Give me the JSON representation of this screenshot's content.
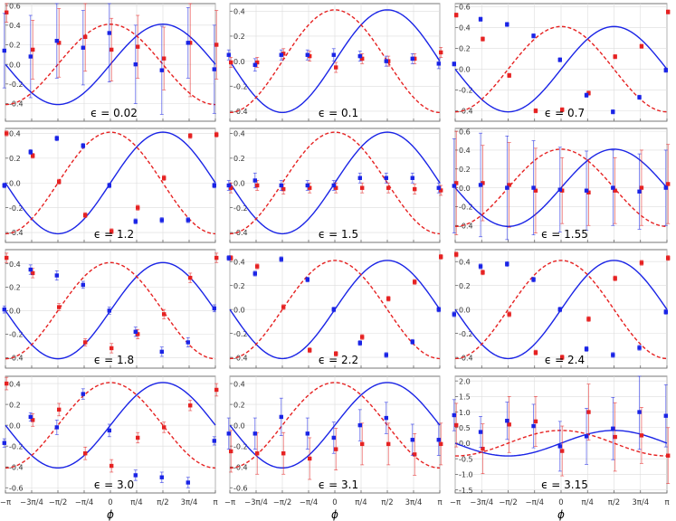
{
  "chart_data": {
    "type": "scatter",
    "xlabel": "ϕ",
    "x_ticks": [
      "−π",
      "−3π/4",
      "−π/2",
      "−π/4",
      "0",
      "π/4",
      "π/2",
      "3π/4",
      "π"
    ],
    "x_values": [
      -3.1416,
      -2.3562,
      -1.5708,
      -0.7854,
      0,
      0.7854,
      1.5708,
      2.3562,
      3.1416
    ],
    "panels": [
      {
        "label": "ϵ = 0.02",
        "ylim": [
          -0.58,
          0.62
        ],
        "yticks": [
          "-0.4",
          "-0.2",
          "0.0",
          "0.2",
          "0.4",
          "0.6"
        ],
        "blue": [
          0.14,
          0.08,
          0.24,
          0.17,
          0.32,
          0.0,
          -0.06,
          0.22,
          -0.05
        ],
        "blue_err": [
          0.38,
          0.42,
          0.38,
          0.38,
          0.5,
          0.4,
          0.45,
          0.36,
          0.45
        ],
        "red": [
          0.53,
          0.15,
          0.22,
          0.28,
          0.15,
          0.18,
          0.06,
          0.22,
          0.2
        ],
        "red_err": [
          0.1,
          0.3,
          0.35,
          0.35,
          0.32,
          0.32,
          0.32,
          0.55,
          0.35
        ]
      },
      {
        "label": "ϵ = 0.1",
        "ylim": [
          -0.48,
          0.46
        ],
        "yticks": [
          "-0.4",
          "-0.2",
          "0.0",
          "0.2",
          "0.4"
        ],
        "blue": [
          0.05,
          -0.03,
          0.05,
          0.05,
          0.05,
          0.04,
          0.0,
          0.02,
          -0.02
        ],
        "blue_err": [
          0.04,
          0.05,
          0.04,
          0.04,
          0.05,
          0.04,
          0.04,
          0.04,
          0.04
        ],
        "red": [
          -0.01,
          -0.01,
          0.06,
          0.04,
          -0.05,
          0.02,
          0.0,
          0.02,
          0.07
        ],
        "red_err": [
          0.04,
          0.04,
          0.04,
          0.04,
          0.04,
          0.04,
          0.04,
          0.04,
          0.04
        ]
      },
      {
        "label": "ϵ = 0.7",
        "ylim": [
          -0.5,
          0.63
        ],
        "yticks": [
          "-0.4",
          "-0.2",
          "0.0",
          "0.2",
          "0.4",
          "0.6"
        ],
        "blue": [
          0.05,
          0.48,
          0.43,
          0.32,
          0.09,
          -0.25,
          -0.41,
          -0.27,
          -0.01
        ],
        "blue_err": [
          0.02,
          0.02,
          0.02,
          0.02,
          0.02,
          0.02,
          0.02,
          0.02,
          0.02
        ],
        "red": [
          0.52,
          0.29,
          -0.06,
          -0.4,
          -0.39,
          -0.23,
          0.12,
          0.22,
          0.55
        ],
        "red_err": [
          0.02,
          0.02,
          0.02,
          0.02,
          0.02,
          0.02,
          0.02,
          0.02,
          0.02
        ]
      },
      {
        "label": "ϵ = 1.2",
        "ylim": [
          -0.48,
          0.44
        ],
        "yticks": [
          "-0.4",
          "-0.2",
          "0.0",
          "0.2",
          "0.4"
        ],
        "blue": [
          -0.02,
          0.25,
          0.36,
          0.3,
          -0.02,
          -0.31,
          -0.3,
          -0.3,
          -0.02
        ],
        "blue_err": [
          0.02,
          0.02,
          0.02,
          0.02,
          0.02,
          0.02,
          0.02,
          0.02,
          0.02
        ],
        "red": [
          0.4,
          0.22,
          0.01,
          -0.26,
          -0.39,
          -0.2,
          0.04,
          0.38,
          0.39
        ],
        "red_err": [
          0.02,
          0.02,
          0.02,
          0.02,
          0.02,
          0.02,
          0.02,
          0.02,
          0.02
        ]
      },
      {
        "label": "ϵ = 1.5",
        "ylim": [
          -0.48,
          0.44
        ],
        "yticks": [
          "-0.4",
          "-0.2",
          "0.0",
          "0.2",
          "0.4"
        ],
        "blue": [
          -0.02,
          0.02,
          -0.02,
          -0.02,
          -0.02,
          0.04,
          0.04,
          0.04,
          -0.04
        ],
        "blue_err": [
          0.04,
          0.06,
          0.04,
          0.04,
          0.04,
          0.04,
          0.04,
          0.04,
          0.04
        ],
        "red": [
          -0.04,
          -0.02,
          -0.05,
          -0.04,
          -0.04,
          -0.04,
          -0.04,
          -0.05,
          -0.06
        ],
        "red_err": [
          0.04,
          0.04,
          0.04,
          0.04,
          0.04,
          0.04,
          0.04,
          0.04,
          0.04
        ]
      },
      {
        "label": "ϵ = 1.55",
        "ylim": [
          -0.58,
          0.63
        ],
        "yticks": [
          "-0.4",
          "-0.2",
          "0.0",
          "0.2",
          "0.4",
          "0.6"
        ],
        "blue": [
          0.02,
          0.03,
          0.0,
          0.0,
          -0.02,
          -0.03,
          0.0,
          -0.04,
          0.0
        ],
        "blue_err": [
          0.5,
          0.55,
          0.55,
          0.5,
          0.45,
          0.42,
          0.4,
          0.4,
          0.4
        ],
        "red": [
          0.05,
          0.05,
          0.03,
          -0.03,
          -0.03,
          -0.05,
          -0.03,
          0.0,
          0.04
        ],
        "red_err": [
          0.55,
          0.4,
          0.45,
          0.45,
          0.35,
          0.35,
          0.35,
          0.4,
          0.42
        ]
      },
      {
        "label": "ϵ = 1.8",
        "ylim": [
          -0.49,
          0.52
        ],
        "yticks": [
          "-0.4",
          "-0.2",
          "0.0",
          "0.2",
          "0.4"
        ],
        "blue": [
          0.01,
          0.35,
          0.3,
          0.22,
          0.0,
          -0.18,
          -0.35,
          -0.27,
          0.02
        ],
        "blue_err": [
          0.03,
          0.04,
          0.04,
          0.03,
          0.03,
          0.04,
          0.04,
          0.04,
          0.03
        ],
        "red": [
          0.45,
          0.32,
          0.03,
          -0.27,
          -0.32,
          -0.2,
          -0.03,
          0.28,
          0.45
        ],
        "red_err": [
          0.04,
          0.04,
          0.03,
          0.03,
          0.04,
          0.04,
          0.04,
          0.04,
          0.04
        ]
      },
      {
        "label": "ϵ = 2.2",
        "ylim": [
          -0.49,
          0.5
        ],
        "yticks": [
          "-0.4",
          "-0.2",
          "0.0",
          "0.2",
          "0.4"
        ],
        "blue": [
          0.43,
          0.3,
          0.42,
          0.25,
          0.0,
          -0.28,
          -0.38,
          -0.27,
          0.0
        ],
        "blue_err": [
          0.02,
          0.02,
          0.02,
          0.02,
          0.02,
          0.02,
          0.02,
          0.02,
          0.02
        ],
        "red": [
          0.43,
          0.36,
          0.02,
          -0.34,
          -0.37,
          -0.23,
          0.09,
          0.23,
          0.44
        ],
        "red_err": [
          0.02,
          0.02,
          0.02,
          0.02,
          0.02,
          0.02,
          0.02,
          0.02,
          0.02
        ]
      },
      {
        "label": "ϵ = 2.4",
        "ylim": [
          -0.49,
          0.5
        ],
        "yticks": [
          "-0.4",
          "-0.2",
          "0.0",
          "0.2",
          "0.4"
        ],
        "blue": [
          -0.04,
          0.36,
          0.38,
          0.25,
          0.0,
          -0.33,
          -0.38,
          -0.32,
          -0.02
        ],
        "blue_err": [
          0.02,
          0.02,
          0.02,
          0.02,
          0.02,
          0.02,
          0.02,
          0.02,
          0.02
        ],
        "red": [
          0.46,
          0.31,
          -0.04,
          -0.36,
          -0.4,
          -0.08,
          0.26,
          0.39,
          0.43
        ],
        "red_err": [
          0.02,
          0.02,
          0.02,
          0.02,
          0.02,
          0.02,
          0.02,
          0.02,
          0.02
        ]
      },
      {
        "label": "ϵ = 3.0",
        "ylim": [
          -0.65,
          0.47
        ],
        "yticks": [
          "-0.6",
          "-0.4",
          "-0.2",
          "0.0",
          "0.2",
          "0.4"
        ],
        "blue": [
          -0.17,
          0.08,
          -0.02,
          0.3,
          -0.05,
          -0.48,
          -0.5,
          -0.55,
          -0.15
        ],
        "blue_err": [
          0.04,
          0.04,
          0.07,
          0.05,
          0.06,
          0.05,
          0.05,
          0.05,
          0.04
        ],
        "red": [
          0.4,
          0.05,
          0.15,
          -0.27,
          -0.39,
          -0.12,
          -0.02,
          0.19,
          0.34
        ],
        "red_err": [
          0.06,
          0.06,
          0.06,
          0.06,
          0.06,
          0.05,
          0.05,
          0.05,
          0.06
        ]
      },
      {
        "label": "ϵ = 3.1",
        "ylim": [
          -0.65,
          0.47
        ],
        "yticks": [
          "-0.6",
          "-0.4",
          "-0.2",
          "0.0",
          "0.2",
          "0.4"
        ],
        "blue": [
          -0.08,
          -0.08,
          0.08,
          -0.08,
          -0.12,
          0.0,
          0.07,
          -0.14,
          -0.14
        ],
        "blue_err": [
          0.15,
          0.15,
          0.18,
          0.15,
          0.15,
          0.15,
          0.15,
          0.15,
          0.15
        ],
        "red": [
          -0.25,
          -0.27,
          -0.27,
          -0.32,
          -0.23,
          -0.18,
          -0.18,
          -0.28,
          -0.18
        ],
        "red_err": [
          0.2,
          0.2,
          0.2,
          0.2,
          0.2,
          0.2,
          0.2,
          0.2,
          0.2
        ]
      },
      {
        "label": "ϵ = 3.15",
        "ylim": [
          -1.6,
          2.15
        ],
        "yticks": [
          "-1.5",
          "-1.0",
          "-0.5",
          "0.0",
          "0.5",
          "1.0",
          "1.5",
          "2.0"
        ],
        "blue": [
          0.9,
          0.36,
          0.72,
          0.55,
          -0.1,
          0.22,
          0.47,
          1.0,
          0.88
        ],
        "blue_err": [
          0.5,
          0.5,
          0.6,
          0.7,
          0.8,
          0.9,
          1.0,
          1.2,
          1.0
        ],
        "red": [
          0.58,
          -0.18,
          0.6,
          0.7,
          -0.25,
          1.0,
          0.2,
          0.25,
          -0.4
        ],
        "red_err": [
          0.7,
          0.8,
          0.9,
          0.8,
          0.8,
          0.9,
          1.1,
          0.9,
          0.9
        ]
      }
    ],
    "series": [
      {
        "name": "",
        "color": "#1a24e6",
        "style": "solid",
        "model": "0.4·sin(ϕ)"
      },
      {
        "name": "",
        "color": "#e62222",
        "style": "dashed",
        "model": "0.4·cos(ϕ)"
      }
    ],
    "curve_amplitude": 0.41,
    "grid": true
  }
}
